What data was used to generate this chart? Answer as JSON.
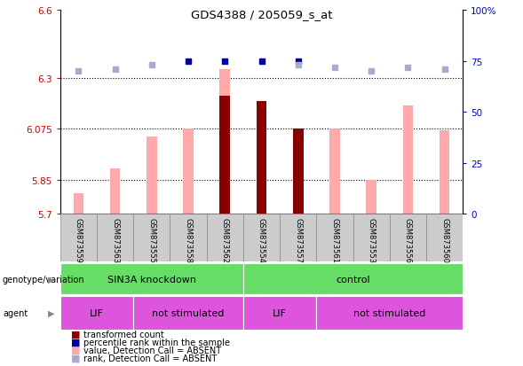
{
  "title": "GDS4388 / 205059_s_at",
  "samples": [
    "GSM873559",
    "GSM873563",
    "GSM873555",
    "GSM873558",
    "GSM873562",
    "GSM873554",
    "GSM873557",
    "GSM873561",
    "GSM873553",
    "GSM873556",
    "GSM873560"
  ],
  "pink_bar_values": [
    5.79,
    5.9,
    6.04,
    6.075,
    6.34,
    5.85,
    6.075,
    6.075,
    5.85,
    6.18,
    6.07
  ],
  "dark_red_values": [
    null,
    null,
    null,
    null,
    6.22,
    6.2,
    6.075,
    null,
    null,
    null,
    null
  ],
  "blue_square_values": [
    null,
    null,
    null,
    75,
    75,
    75,
    75,
    null,
    null,
    null,
    null
  ],
  "lightblue_square_values": [
    70,
    71,
    73,
    null,
    null,
    null,
    73,
    72,
    70,
    72,
    71
  ],
  "ylim_left": [
    5.7,
    6.6
  ],
  "ylim_right": [
    0,
    100
  ],
  "yticks_left": [
    5.7,
    5.85,
    6.075,
    6.3,
    6.6
  ],
  "ytick_labels_left": [
    "5.7",
    "5.85",
    "6.075",
    "6.3",
    "6.6"
  ],
  "yticks_right": [
    0,
    25,
    50,
    75,
    100
  ],
  "ytick_labels_right": [
    "0",
    "25",
    "50",
    "75",
    "100%"
  ],
  "hlines": [
    5.85,
    6.075,
    6.3
  ],
  "pink_color": "#ffaaaa",
  "dark_red_color": "#880000",
  "blue_color": "#000099",
  "lightblue_color": "#aaaacc",
  "green_color": "#66dd66",
  "magenta_color": "#dd55dd"
}
